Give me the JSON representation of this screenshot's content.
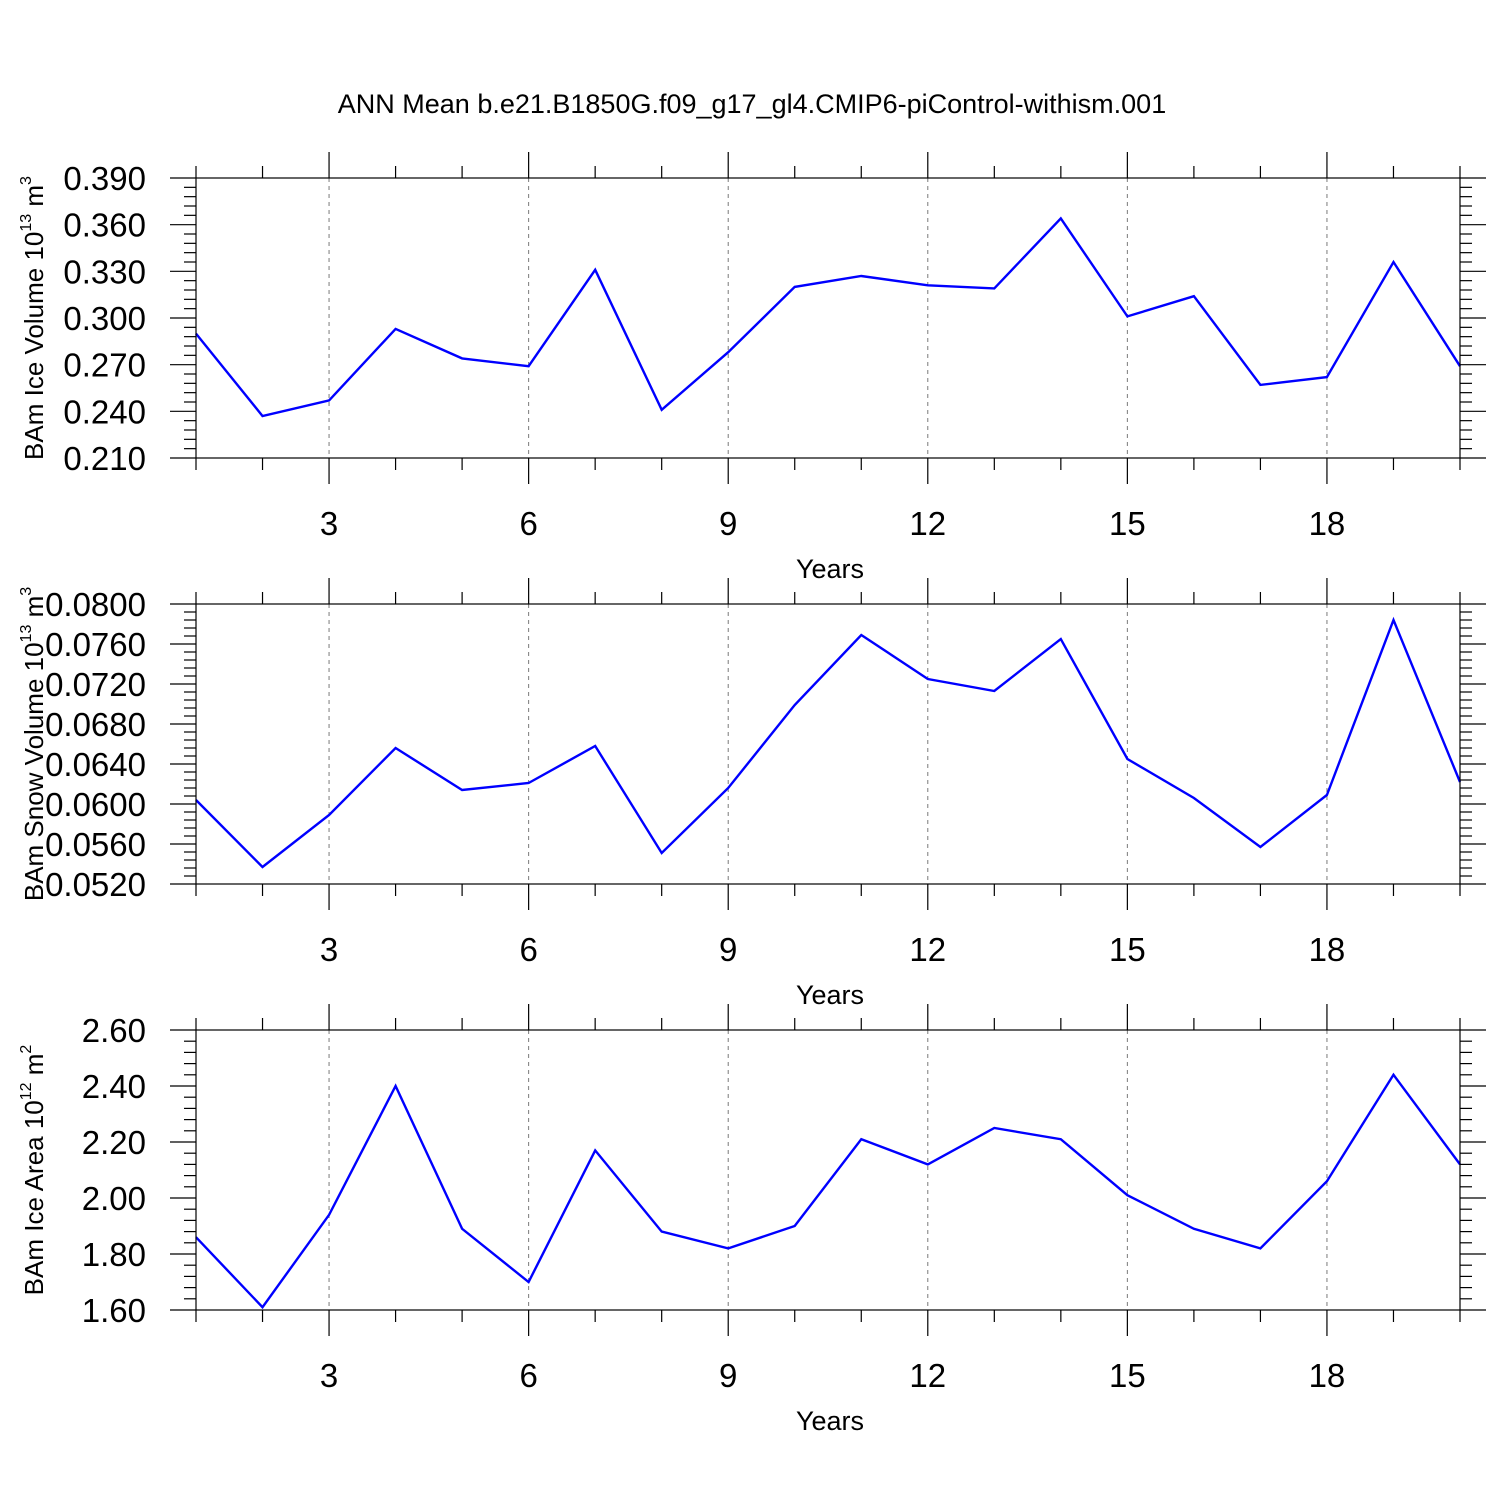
{
  "title": "ANN Mean b.e21.B1850G.f09_g17_gl4.CMIP6-piControl-withism.001",
  "chart_data": [
    {
      "type": "line",
      "ylabel": "BAm Ice Volume 10",
      "ylabel_exp": "13",
      "ylabel_unit": " m",
      "ylabel_unit_exp": "3",
      "xlabel": "Years",
      "xlim": [
        1,
        20
      ],
      "ylim": [
        0.21,
        0.39
      ],
      "yticks": [
        "0.210",
        "0.240",
        "0.270",
        "0.300",
        "0.330",
        "0.360",
        "0.390"
      ],
      "xticks": [
        "3",
        "6",
        "9",
        "12",
        "15",
        "18"
      ],
      "color": "#0000ff",
      "x": [
        1,
        2,
        3,
        4,
        5,
        6,
        7,
        8,
        9,
        10,
        11,
        12,
        13,
        14,
        15,
        16,
        17,
        18,
        19,
        20
      ],
      "y": [
        0.29,
        0.237,
        0.247,
        0.293,
        0.274,
        0.269,
        0.331,
        0.241,
        0.278,
        0.32,
        0.327,
        0.321,
        0.319,
        0.364,
        0.301,
        0.314,
        0.257,
        0.262,
        0.336,
        0.269
      ]
    },
    {
      "type": "line",
      "ylabel": "BAm Snow Volume 10",
      "ylabel_exp": "13",
      "ylabel_unit": " m",
      "ylabel_unit_exp": "3",
      "xlabel": "Years",
      "xlim": [
        1,
        20
      ],
      "ylim": [
        0.052,
        0.08
      ],
      "yticks": [
        "0.0520",
        "0.0560",
        "0.0600",
        "0.0640",
        "0.0680",
        "0.0720",
        "0.0760",
        "0.0800"
      ],
      "xticks": [
        "3",
        "6",
        "9",
        "12",
        "15",
        "18"
      ],
      "color": "#0000ff",
      "x": [
        1,
        2,
        3,
        4,
        5,
        6,
        7,
        8,
        9,
        10,
        11,
        12,
        13,
        14,
        15,
        16,
        17,
        18,
        19,
        20
      ],
      "y": [
        0.0604,
        0.0537,
        0.0589,
        0.0656,
        0.0614,
        0.0621,
        0.0658,
        0.0551,
        0.0616,
        0.0699,
        0.0769,
        0.0725,
        0.0713,
        0.0765,
        0.0645,
        0.0606,
        0.0557,
        0.0609,
        0.0784,
        0.0622
      ]
    },
    {
      "type": "line",
      "ylabel": "BAm Ice Area 10",
      "ylabel_exp": "12",
      "ylabel_unit": " m",
      "ylabel_unit_exp": "2",
      "xlabel": "Years",
      "xlim": [
        1,
        20
      ],
      "ylim": [
        1.6,
        2.6
      ],
      "yticks": [
        "1.60",
        "1.80",
        "2.00",
        "2.20",
        "2.40",
        "2.60"
      ],
      "xticks": [
        "3",
        "6",
        "9",
        "12",
        "15",
        "18"
      ],
      "color": "#0000ff",
      "x": [
        1,
        2,
        3,
        4,
        5,
        6,
        7,
        8,
        9,
        10,
        11,
        12,
        13,
        14,
        15,
        16,
        17,
        18,
        19,
        20
      ],
      "y": [
        1.86,
        1.61,
        1.94,
        2.4,
        1.89,
        1.7,
        2.17,
        1.88,
        1.82,
        1.9,
        2.21,
        2.12,
        2.25,
        2.21,
        2.01,
        1.89,
        1.82,
        2.06,
        2.44,
        2.12
      ]
    }
  ]
}
